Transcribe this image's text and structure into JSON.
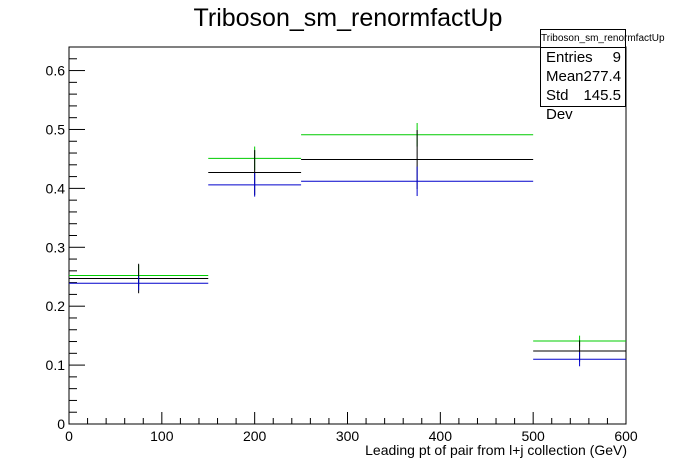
{
  "chart_data": {
    "type": "histogram",
    "title": "Triboson_sm_renormfactUp",
    "xlabel": "Leading pt of pair from l+j collection (GeV)",
    "ylabel": "",
    "xlim": [
      0,
      600
    ],
    "ylim": [
      0,
      0.64
    ],
    "x_ticks": [
      "0",
      "100",
      "200",
      "300",
      "400",
      "500",
      "600"
    ],
    "y_ticks": [
      "0",
      "0.1",
      "0.2",
      "0.3",
      "0.4",
      "0.5",
      "0.6"
    ],
    "bins": [
      [
        0,
        150
      ],
      [
        150,
        250
      ],
      [
        250,
        500
      ],
      [
        500,
        600
      ]
    ],
    "series": [
      {
        "color": "#00cc00",
        "values": [
          0.252,
          0.451,
          0.491,
          0.141
        ],
        "errors": [
          0.018,
          0.02,
          0.02,
          0.009
        ]
      },
      {
        "color": "#000000",
        "values": [
          0.247,
          0.427,
          0.449,
          0.124
        ],
        "errors": [
          0.025,
          0.038,
          0.05,
          0.018
        ]
      },
      {
        "color": "#0000cc",
        "values": [
          0.239,
          0.406,
          0.412,
          0.11
        ],
        "errors": [
          0.012,
          0.02,
          0.025,
          0.012
        ]
      }
    ],
    "stats": {
      "name": "Triboson_sm_renormfactUp",
      "entries_label": "Entries",
      "entries": "9",
      "mean_label": "Mean",
      "mean": "277.4",
      "std_label": "Std Dev",
      "std": "145.5"
    }
  }
}
